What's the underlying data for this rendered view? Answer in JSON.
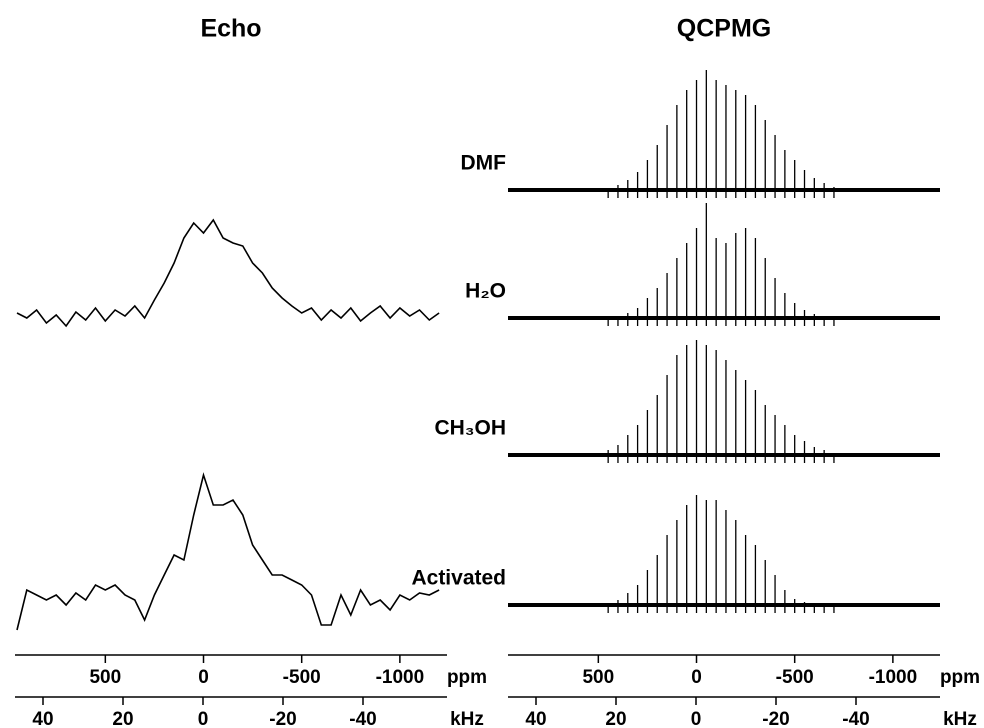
{
  "chart_data": [
    {
      "type": "line",
      "title": "Echo",
      "x": [
        950,
        900,
        850,
        800,
        750,
        700,
        650,
        600,
        550,
        500,
        450,
        400,
        350,
        300,
        250,
        200,
        150,
        100,
        50,
        0,
        -50,
        -100,
        -150,
        -200,
        -250,
        -300,
        -350,
        -400,
        -450,
        -500,
        -550,
        -600,
        -650,
        -700,
        -750,
        -800,
        -850,
        -900,
        -950,
        -1000,
        -1050,
        -1100,
        -1150,
        -1200
      ],
      "series": [
        {
          "color": "#000000",
          "values": [
            0.05,
            0.0,
            0.08,
            -0.05,
            0.03,
            -0.08,
            0.06,
            -0.02,
            0.1,
            -0.03,
            0.08,
            0.02,
            0.12,
            0.0,
            0.18,
            0.35,
            0.55,
            0.8,
            0.95,
            0.85,
            0.98,
            0.8,
            0.75,
            0.72,
            0.55,
            0.45,
            0.3,
            0.2,
            0.12,
            0.05,
            0.1,
            -0.02,
            0.08,
            0.0,
            0.1,
            -0.03,
            0.05,
            0.12,
            0.0,
            0.1,
            0.02,
            0.08,
            -0.02,
            0.05
          ]
        },
        {
          "color": "#000000",
          "values": [
            -0.25,
            0.15,
            0.1,
            0.05,
            0.1,
            0.0,
            0.12,
            0.05,
            0.2,
            0.15,
            0.2,
            0.1,
            0.05,
            -0.15,
            0.1,
            0.3,
            0.5,
            0.45,
            0.9,
            1.3,
            1.0,
            1.0,
            1.05,
            0.9,
            0.6,
            0.45,
            0.3,
            0.3,
            0.25,
            0.2,
            0.1,
            -0.2,
            -0.2,
            0.1,
            -0.1,
            0.15,
            0.0,
            0.05,
            -0.05,
            0.1,
            0.05,
            0.12,
            0.1,
            0.15
          ]
        }
      ],
      "xlim": [
        960,
        -1240
      ],
      "xticks": [
        500,
        0,
        -500,
        -1000
      ],
      "xlabel": "ppm",
      "x2lim": [
        47,
        -61
      ],
      "x2ticks": [
        40,
        20,
        0,
        -20,
        -40
      ],
      "x2label": "kHz"
    },
    {
      "type": "stem",
      "title": "QCPMG",
      "x": [
        450,
        400,
        350,
        300,
        250,
        200,
        150,
        100,
        50,
        0,
        -50,
        -100,
        -150,
        -200,
        -250,
        -300,
        -350,
        -400,
        -450,
        -500,
        -550,
        -600,
        -650,
        -700
      ],
      "series": [
        {
          "name": "DMF",
          "color": "#000000",
          "values": [
            0.02,
            0.05,
            0.1,
            0.18,
            0.3,
            0.45,
            0.65,
            0.85,
            1.0,
            1.1,
            1.2,
            1.1,
            1.05,
            1.0,
            0.95,
            0.85,
            0.7,
            0.55,
            0.4,
            0.3,
            0.2,
            0.12,
            0.07,
            0.03
          ]
        },
        {
          "name": "H₂O",
          "color": "#000000",
          "values": [
            0.0,
            0.02,
            0.05,
            0.1,
            0.2,
            0.3,
            0.45,
            0.6,
            0.75,
            0.9,
            1.15,
            0.8,
            0.75,
            0.85,
            0.9,
            0.8,
            0.6,
            0.4,
            0.25,
            0.15,
            0.08,
            0.04,
            0.02,
            0.0
          ]
        },
        {
          "name": "CH₃OH",
          "color": "#000000",
          "values": [
            0.05,
            0.1,
            0.2,
            0.3,
            0.45,
            0.6,
            0.8,
            1.0,
            1.1,
            1.15,
            1.1,
            1.05,
            0.95,
            0.85,
            0.75,
            0.65,
            0.5,
            0.4,
            0.3,
            0.2,
            0.14,
            0.08,
            0.05,
            0.02
          ]
        },
        {
          "name": "Activated",
          "color": "#000000",
          "values": [
            0.02,
            0.05,
            0.12,
            0.2,
            0.35,
            0.5,
            0.7,
            0.85,
            1.0,
            1.1,
            1.05,
            1.05,
            0.95,
            0.85,
            0.7,
            0.6,
            0.45,
            0.3,
            0.15,
            0.06,
            0.03,
            0.02,
            0.01,
            0.0
          ]
        }
      ],
      "xlim": [
        960,
        -1240
      ],
      "xticks": [
        500,
        0,
        -500,
        -1000
      ],
      "xlabel": "ppm",
      "x2lim": [
        47,
        -61
      ],
      "x2ticks": [
        40,
        20,
        0,
        -20,
        -40
      ],
      "x2label": "kHz"
    }
  ]
}
